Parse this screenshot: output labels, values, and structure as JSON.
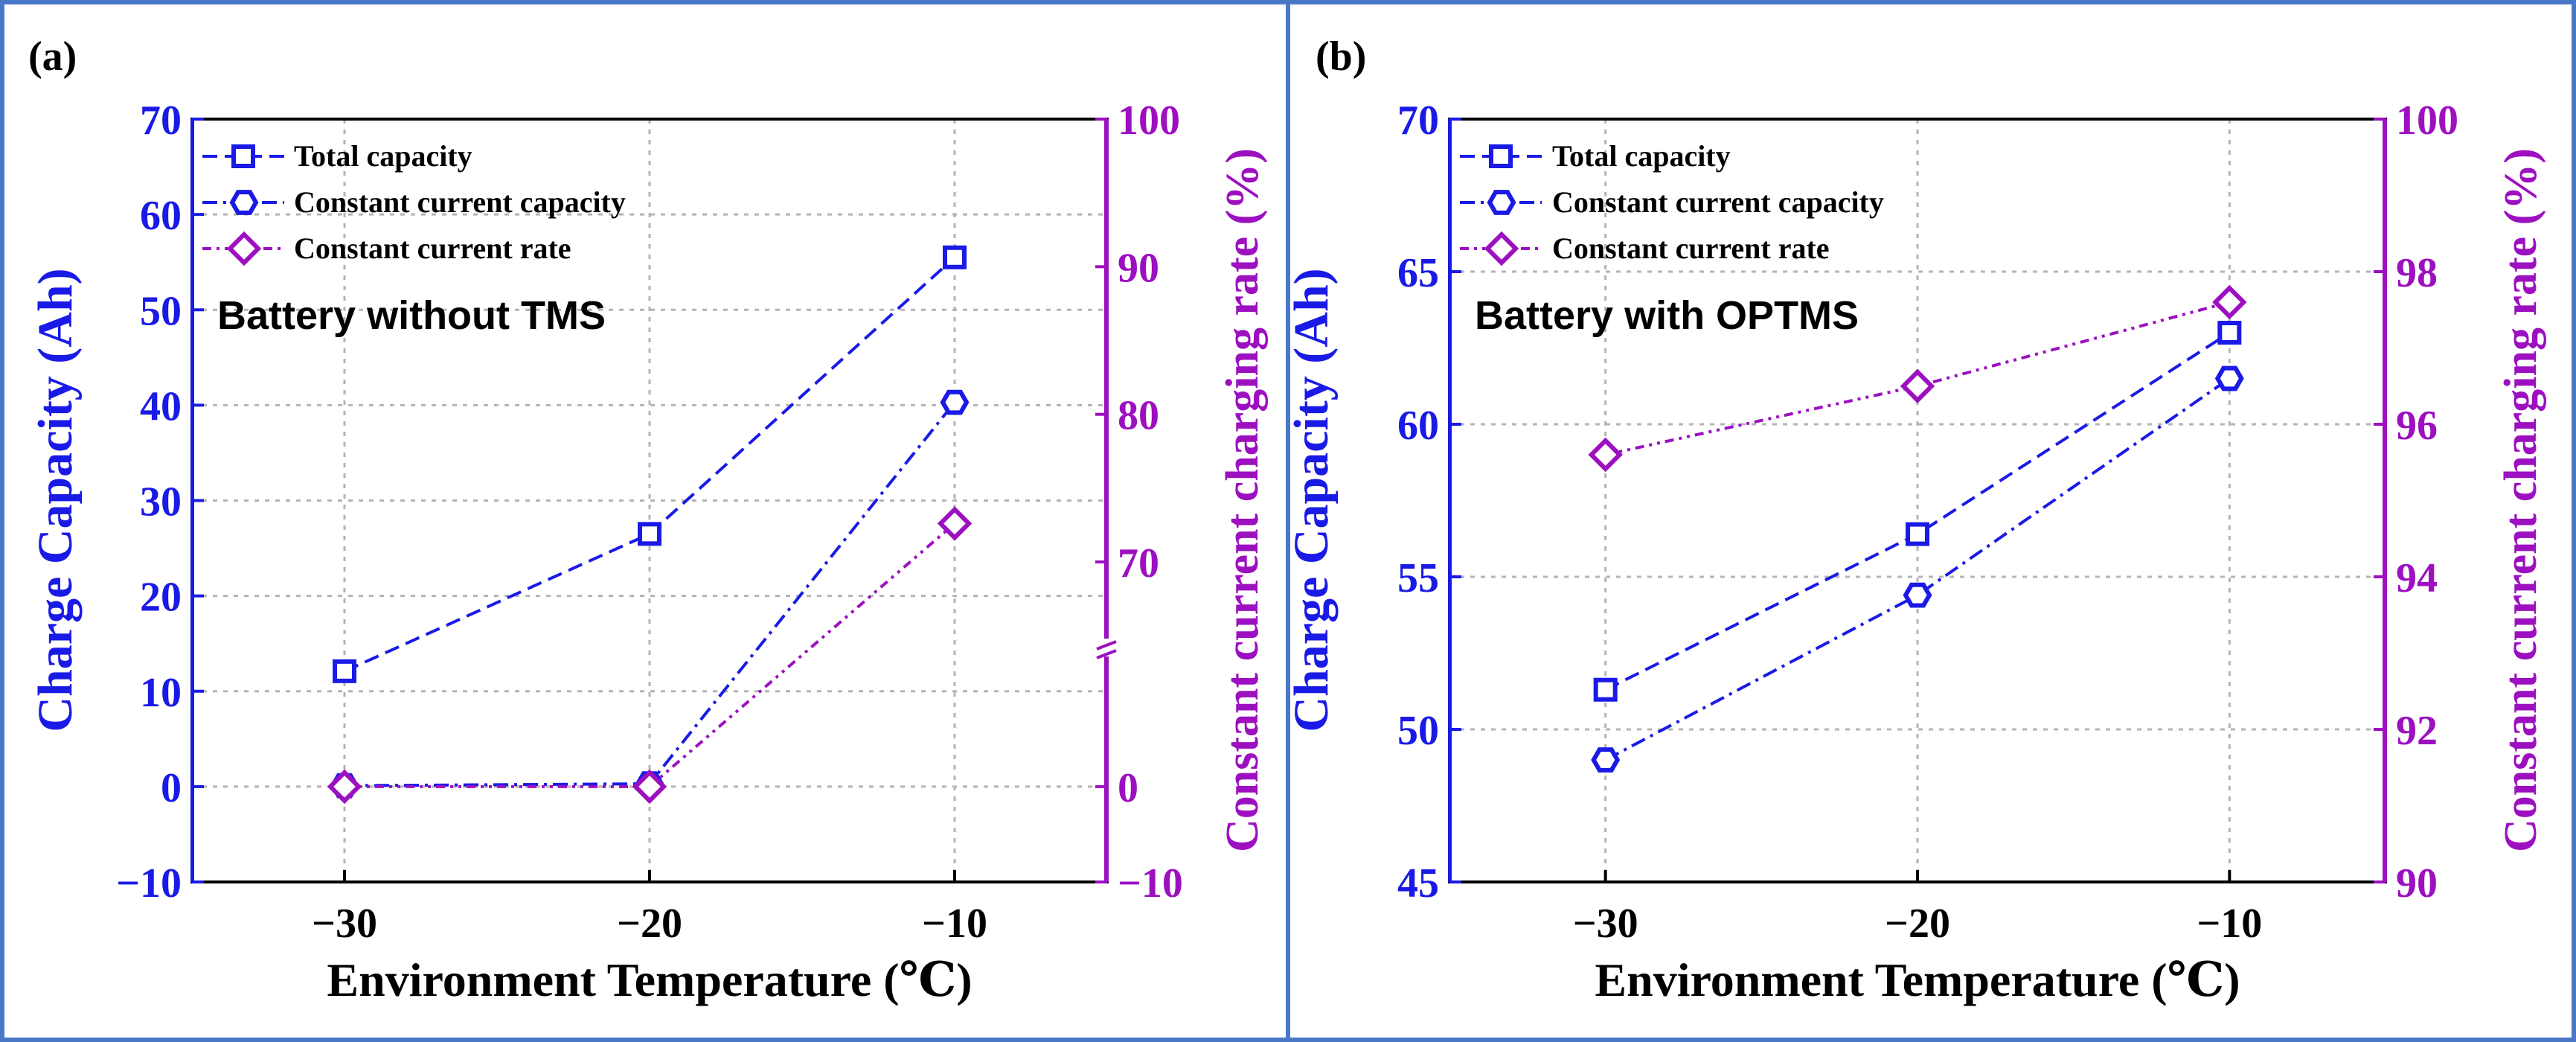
{
  "colors": {
    "left_axis": "#1a1ae6",
    "right_axis": "#9c10c0",
    "frame": "#4a78c8",
    "grid": "#b4b4b4",
    "text": "#000000"
  },
  "chart_data": [
    {
      "panel_label": "(a)",
      "type": "line",
      "annotation": "Battery without TMS",
      "xlabel": "Environment Temperature (℃)",
      "ylabel_left": "Charge Capacity (Ah)",
      "ylabel_right": "Constant current charging rate (%)",
      "x": [
        -30,
        -20,
        -10
      ],
      "xlim": [
        -35,
        -5
      ],
      "xticks": [
        -30,
        -20,
        -10
      ],
      "xtick_labels": [
        "−30",
        "−20",
        "−10"
      ],
      "ylim_left": [
        -10,
        70
      ],
      "yticks_left": [
        -10,
        0,
        10,
        20,
        30,
        40,
        50,
        60,
        70
      ],
      "ytick_labels_left": [
        "−10",
        "0",
        "10",
        "20",
        "30",
        "40",
        "50",
        "60",
        "70"
      ],
      "right_axis_broken": true,
      "yticks_right": [
        -10,
        0,
        70,
        80,
        90,
        100
      ],
      "ytick_labels_right": [
        "−10",
        "0",
        "70",
        "80",
        "90",
        "100"
      ],
      "legend": [
        "Total capacity",
        "Constant current capacity",
        "Constant current rate"
      ],
      "series": [
        {
          "name": "Total capacity",
          "axis": "left",
          "marker": "square",
          "dash": "dashed",
          "values": [
            12.1,
            26.5,
            55.5
          ]
        },
        {
          "name": "Constant current capacity",
          "axis": "left",
          "marker": "hexagon",
          "dash": "dashdot",
          "values": [
            0.1,
            0.3,
            40.3
          ]
        },
        {
          "name": "Constant current rate",
          "axis": "right",
          "marker": "diamond",
          "dash": "dashdotdot",
          "values": [
            0,
            0,
            72.6
          ]
        }
      ]
    },
    {
      "panel_label": "(b)",
      "type": "line",
      "annotation": "Battery with OPTMS",
      "xlabel": "Environment Temperature (℃)",
      "ylabel_left": "Charge Capacity (Ah)",
      "ylabel_right": "Constant current charging rate (%)",
      "x": [
        -30,
        -20,
        -10
      ],
      "xlim": [
        -35,
        -5
      ],
      "xticks": [
        -30,
        -20,
        -10
      ],
      "xtick_labels": [
        "−30",
        "−20",
        "−10"
      ],
      "ylim_left": [
        45,
        70
      ],
      "yticks_left": [
        45,
        50,
        55,
        60,
        65,
        70
      ],
      "ytick_labels_left": [
        "45",
        "50",
        "55",
        "60",
        "65",
        "70"
      ],
      "ylim_right": [
        90,
        100
      ],
      "right_axis_broken": false,
      "yticks_right": [
        90,
        92,
        94,
        96,
        98,
        100
      ],
      "ytick_labels_right": [
        "90",
        "92",
        "94",
        "96",
        "98",
        "100"
      ],
      "legend": [
        "Total capacity",
        "Constant current capacity",
        "Constant current rate"
      ],
      "series": [
        {
          "name": "Total capacity",
          "axis": "left",
          "marker": "square",
          "dash": "dashed",
          "values": [
            51.3,
            56.4,
            63.0
          ]
        },
        {
          "name": "Constant current capacity",
          "axis": "left",
          "marker": "hexagon",
          "dash": "dashdot",
          "values": [
            49.0,
            54.4,
            61.5
          ]
        },
        {
          "name": "Constant current rate",
          "axis": "right",
          "marker": "diamond",
          "dash": "dashdotdot",
          "values": [
            95.6,
            96.5,
            97.6
          ]
        }
      ]
    }
  ]
}
